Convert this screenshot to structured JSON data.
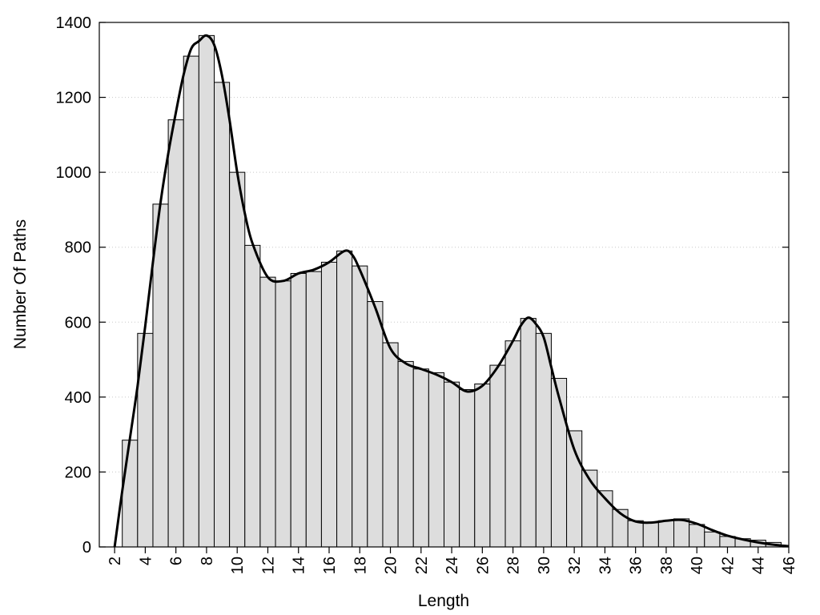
{
  "chart_data": {
    "type": "bar",
    "title": "",
    "xlabel": "Length",
    "ylabel": "Number Of Paths",
    "xlim": [
      1,
      46
    ],
    "ylim": [
      0,
      1400
    ],
    "x_ticks": [
      2,
      4,
      6,
      8,
      10,
      12,
      14,
      16,
      18,
      20,
      22,
      24,
      26,
      28,
      30,
      32,
      34,
      36,
      38,
      40,
      42,
      44,
      46
    ],
    "y_ticks": [
      0,
      200,
      400,
      600,
      800,
      1000,
      1200,
      1400
    ],
    "grid": "horizontal-dotted",
    "bar_color": "#dddddd",
    "bar_edge_color": "#000000",
    "curve_color": "#000000",
    "bars": {
      "x": [
        3,
        4,
        5,
        6,
        7,
        8,
        9,
        10,
        11,
        12,
        13,
        14,
        15,
        16,
        17,
        18,
        19,
        20,
        21,
        22,
        23,
        24,
        25,
        26,
        27,
        28,
        29,
        30,
        31,
        32,
        33,
        34,
        35,
        36,
        37,
        38,
        39,
        40,
        41,
        42,
        43,
        44,
        45
      ],
      "values": [
        285,
        570,
        915,
        1140,
        1310,
        1365,
        1240,
        1000,
        805,
        720,
        710,
        730,
        735,
        760,
        790,
        750,
        655,
        545,
        495,
        475,
        465,
        440,
        420,
        435,
        485,
        550,
        610,
        570,
        450,
        310,
        205,
        150,
        100,
        70,
        65,
        70,
        75,
        60,
        40,
        28,
        22,
        18,
        12
      ]
    },
    "curve": {
      "x": [
        2,
        2.5,
        3,
        3.5,
        4,
        4.5,
        5,
        5.5,
        6,
        6.5,
        7,
        7.5,
        8,
        8.5,
        9,
        9.5,
        10,
        10.5,
        11,
        12,
        13,
        14,
        15,
        16,
        17,
        17.5,
        18,
        19,
        20,
        21,
        22,
        23,
        24,
        25,
        26,
        27,
        28,
        28.5,
        29,
        29.5,
        30,
        30.5,
        31,
        32,
        33,
        34,
        35,
        36,
        37,
        38,
        39,
        40,
        41,
        42,
        43,
        44,
        45,
        46
      ],
      "y": [
        0,
        150,
        290,
        430,
        590,
        760,
        920,
        1050,
        1160,
        1260,
        1330,
        1350,
        1365,
        1340,
        1260,
        1140,
        1000,
        890,
        810,
        720,
        710,
        730,
        740,
        760,
        790,
        780,
        740,
        640,
        530,
        490,
        475,
        460,
        440,
        415,
        430,
        480,
        550,
        590,
        612,
        595,
        560,
        480,
        400,
        260,
        180,
        130,
        90,
        68,
        65,
        70,
        72,
        62,
        45,
        30,
        20,
        12,
        6,
        2
      ]
    }
  }
}
